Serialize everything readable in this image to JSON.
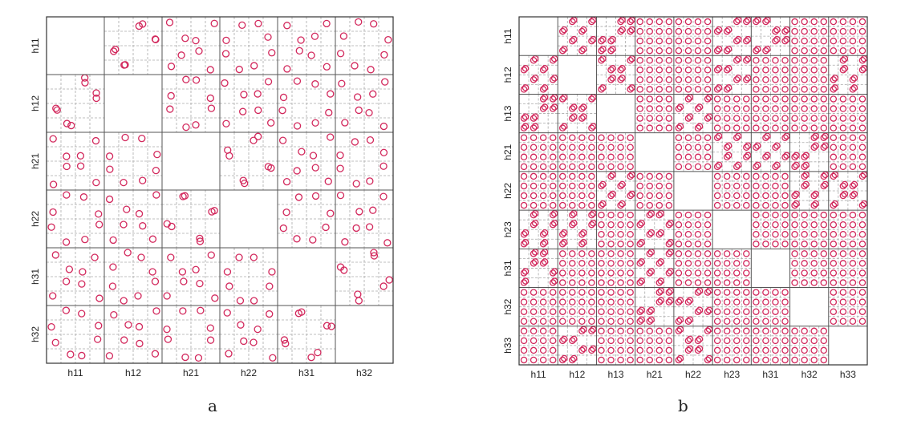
{
  "chart_data": [
    {
      "type": "scatter",
      "subplot_type": "scatterplot-matrix",
      "caption": "a",
      "variables": [
        "h11",
        "h12",
        "h21",
        "h22",
        "h31",
        "h32"
      ],
      "levels": [
        1,
        2,
        3,
        4
      ],
      "grid": true,
      "diagonal": "empty",
      "runs": {
        "h11": [
          1,
          1,
          4,
          4,
          2,
          2,
          3,
          3
        ],
        "h12": [
          2,
          2,
          3,
          3,
          1,
          1,
          4,
          4
        ],
        "h21": [
          1,
          4,
          1,
          4,
          2,
          3,
          2,
          3
        ],
        "h22": [
          2,
          3,
          2,
          3,
          4,
          1,
          4,
          1
        ],
        "h31": [
          1,
          4,
          4,
          1,
          2,
          3,
          3,
          2
        ],
        "h32": [
          2,
          3,
          3,
          2,
          4,
          1,
          1,
          4
        ]
      },
      "marker_color": "#d2285c"
    },
    {
      "type": "scatter",
      "subplot_type": "scatterplot-matrix",
      "caption": "b",
      "variables": [
        "h11",
        "h12",
        "h13",
        "h21",
        "h22",
        "h23",
        "h31",
        "h32",
        "h33"
      ],
      "levels": [
        1,
        2,
        3,
        4
      ],
      "grid": true,
      "diagonal": "empty",
      "runs": {
        "h11": [
          1,
          1,
          1,
          1,
          2,
          2,
          2,
          2,
          3,
          3,
          3,
          3,
          4,
          4,
          4,
          4
        ],
        "h12": [
          1,
          1,
          3,
          3,
          2,
          2,
          4,
          4,
          3,
          3,
          1,
          1,
          4,
          4,
          2,
          2
        ],
        "h13": [
          1,
          1,
          2,
          2,
          2,
          2,
          1,
          1,
          3,
          3,
          4,
          4,
          4,
          4,
          3,
          3
        ],
        "h21": [
          1,
          2,
          3,
          4,
          1,
          2,
          3,
          4,
          1,
          2,
          3,
          4,
          1,
          2,
          3,
          4
        ],
        "h22": [
          1,
          3,
          2,
          4,
          2,
          4,
          1,
          3,
          3,
          1,
          4,
          2,
          4,
          2,
          3,
          1
        ],
        "h23": [
          1,
          2,
          2,
          1,
          3,
          4,
          4,
          3,
          1,
          2,
          2,
          1,
          3,
          4,
          4,
          3
        ],
        "h31": [
          1,
          2,
          1,
          2,
          3,
          4,
          3,
          4,
          3,
          4,
          3,
          4,
          1,
          2,
          1,
          2
        ],
        "h32": [
          1,
          2,
          3,
          4,
          1,
          2,
          3,
          4,
          2,
          1,
          4,
          3,
          2,
          1,
          4,
          3
        ],
        "h33": [
          1,
          3,
          2,
          4,
          3,
          1,
          4,
          2,
          2,
          4,
          1,
          3,
          4,
          2,
          3,
          1
        ]
      },
      "marker_color": "#d2285c"
    }
  ]
}
